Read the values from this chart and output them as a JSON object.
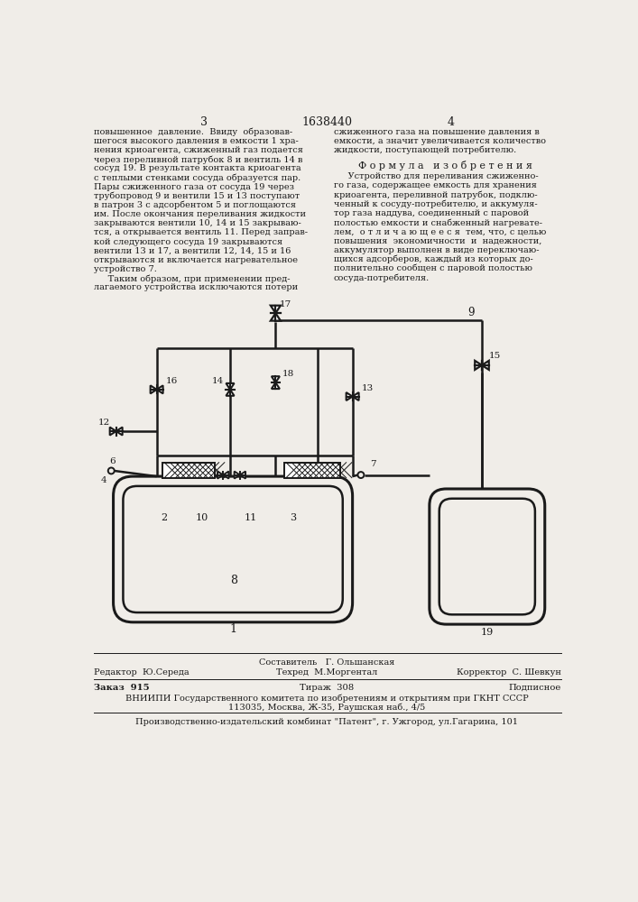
{
  "page_num_left": "3",
  "page_num_center": "1638440",
  "page_num_right": "4",
  "text_left_col": [
    "повышенное  давление.  Ввиду  образовав-",
    "шегося высокого давления в емкости 1 хра-",
    "нения криоагента, сжиженный газ подается",
    "через переливной патрубок 8 и вентиль 14 в",
    "сосуд 19. В результате контакта криоагента",
    "с теплыми стенками сосуда образуется пар.",
    "Пары сжиженного газа от сосуда 19 через",
    "трубопровод 9 и вентили 15 и 13 поступают",
    "в патрон 3 с адсорбентом 5 и поглощаются",
    "им. После окончания переливания жидкости",
    "закрываются вентили 10, 14 и 15 закрываю-",
    "тся, а открывается вентиль 11. Перед заправ-",
    "кой следующего сосуда 19 закрываются",
    "вентили 13 и 17, а вентили 12, 14, 15 и 16",
    "открываются и включается нагревательное",
    "устройство 7."
  ],
  "text_left_col2": [
    "     Таким образом, при применении пред-",
    "лагаемого устройства исключаются потери"
  ],
  "text_right_col": [
    "сжиженного газа на повышение давления в",
    "емкости, а значит увеличивается количество",
    "жидкости, поступающей потребителю."
  ],
  "formula_header": "Ф о р м у л а   и з о б р е т е н и я",
  "formula_text": [
    "     Устройство для переливания сжиженно-",
    "го газа, содержащее емкость для хранения",
    "криоагента, переливной патрубок, подклю-",
    "ченный к сосуду-потребителю, и аккумуля-",
    "тор газа наддува, соединенный с паровой",
    "полостью емкости и снабженный нагревате-",
    "лем,  о т л и ч а ю щ е е с я  тем, что, с целью",
    "повышения  экономичности  и  надежности,",
    "аккумулятор выполнен в виде переключаю-",
    "щихся адсорберов, каждый из которых до-",
    "полнительно сообщен с паровой полостью",
    "сосуда-потребителя."
  ],
  "footer_editor": "Редактор  Ю.Середа",
  "footer_composer": "Составитель   Г. Ольшанская",
  "footer_techred": "Техред  М.Моргентал",
  "footer_corrector": "Корректор  С. Шевкун",
  "footer_order": "Заказ  915",
  "footer_tirazh": "Тираж  308",
  "footer_podpisnoe": "Подписное",
  "footer_vniiipi": "ВНИИПИ Государственного комитета по изобретениям и открытиям при ГКНТ СССР",
  "footer_address": "113035, Москва, Ж-35, Раушская наб., 4/5",
  "footer_factory": "Производственно-издательский комбинат \"Патент\", г. Ужгород, ул.Гагарина, 101",
  "bg_color": "#f0ede8",
  "text_color": "#1a1a1a",
  "line_color": "#1a1a1a"
}
